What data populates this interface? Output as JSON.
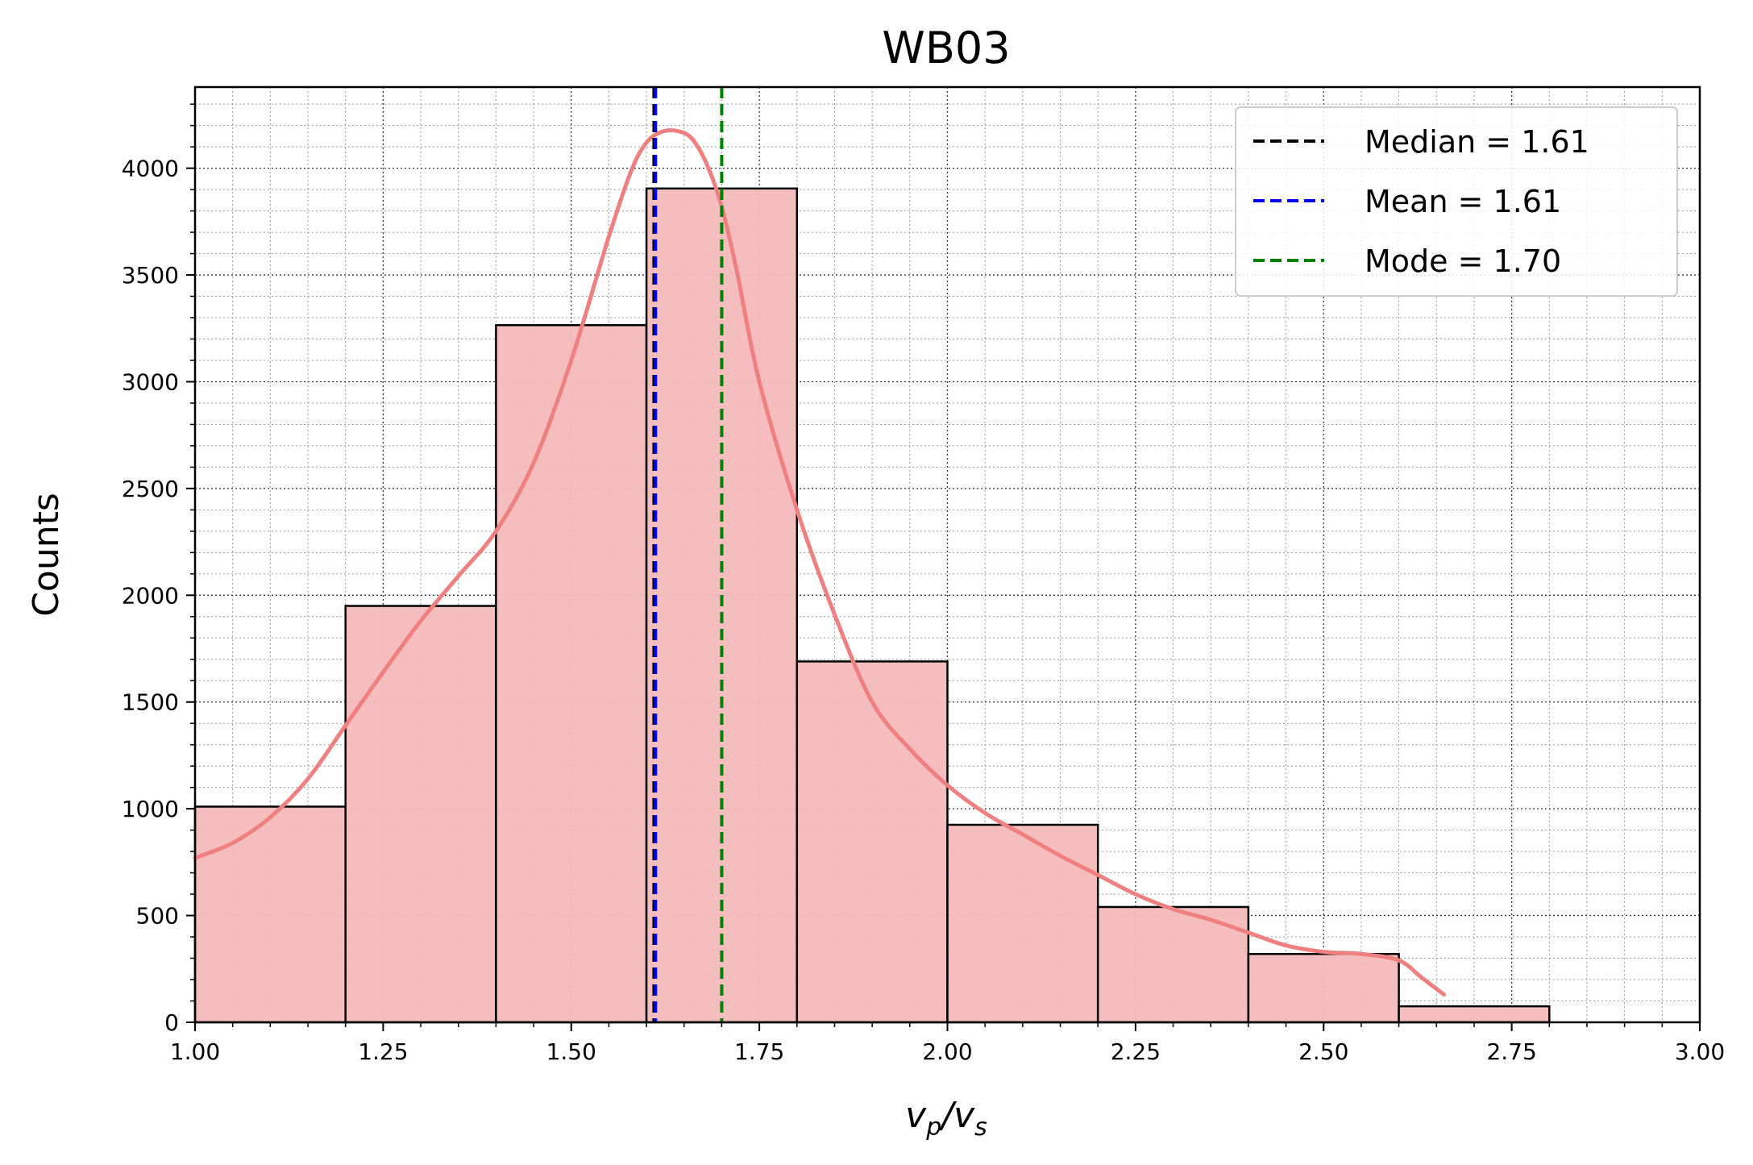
{
  "chart_data": {
    "type": "bar",
    "title": "WB03",
    "xlabel": "v_p/v_s",
    "ylabel": "Counts",
    "xlim": [
      1.0,
      3.0
    ],
    "ylim": [
      0,
      4380
    ],
    "x_ticks": [
      "1.00",
      "1.25",
      "1.50",
      "1.75",
      "2.00",
      "2.25",
      "2.50",
      "2.75",
      "3.00"
    ],
    "y_ticks": [
      "0",
      "500",
      "1000",
      "1500",
      "2000",
      "2500",
      "3000",
      "3500",
      "4000"
    ],
    "grid": "major and minor, dotted",
    "bins": [
      {
        "start": 1.0,
        "end": 1.2,
        "count": 1010
      },
      {
        "start": 1.2,
        "end": 1.4,
        "count": 1950
      },
      {
        "start": 1.4,
        "end": 1.6,
        "count": 3265
      },
      {
        "start": 1.6,
        "end": 1.8,
        "count": 3905
      },
      {
        "start": 1.8,
        "end": 2.0,
        "count": 1690
      },
      {
        "start": 2.0,
        "end": 2.2,
        "count": 925
      },
      {
        "start": 2.2,
        "end": 2.4,
        "count": 540
      },
      {
        "start": 2.4,
        "end": 2.6,
        "count": 320
      },
      {
        "start": 2.6,
        "end": 2.8,
        "count": 75
      },
      {
        "start": 2.8,
        "end": 3.0,
        "count": 0
      }
    ],
    "kde": {
      "x": [
        1.0,
        1.05,
        1.1,
        1.15,
        1.2,
        1.25,
        1.3,
        1.35,
        1.4,
        1.45,
        1.5,
        1.55,
        1.58,
        1.6,
        1.62,
        1.64,
        1.66,
        1.68,
        1.7,
        1.72,
        1.75,
        1.8,
        1.85,
        1.9,
        1.95,
        2.0,
        2.05,
        2.1,
        2.15,
        2.2,
        2.25,
        2.3,
        2.35,
        2.4,
        2.45,
        2.5,
        2.55,
        2.6,
        2.63,
        2.66
      ],
      "y": [
        770,
        840,
        960,
        1140,
        1390,
        1640,
        1880,
        2090,
        2300,
        2620,
        3100,
        3680,
        3990,
        4120,
        4170,
        4175,
        4140,
        4020,
        3820,
        3520,
        3000,
        2400,
        1910,
        1500,
        1280,
        1110,
        980,
        880,
        780,
        690,
        600,
        530,
        480,
        420,
        360,
        330,
        320,
        290,
        210,
        130
      ]
    },
    "lines": [
      {
        "name": "Median = 1.61",
        "x": 1.61,
        "color": "#000000"
      },
      {
        "name": "Mean = 1.61",
        "x": 1.612,
        "color": "#0000ff"
      },
      {
        "name": "Mode = 1.70",
        "x": 1.7,
        "color": "#008000"
      }
    ],
    "legend": "top-right",
    "colors": {
      "bar_fill": "#f4b9ba",
      "bar_edge": "#000000",
      "kde": "#f08080"
    }
  }
}
